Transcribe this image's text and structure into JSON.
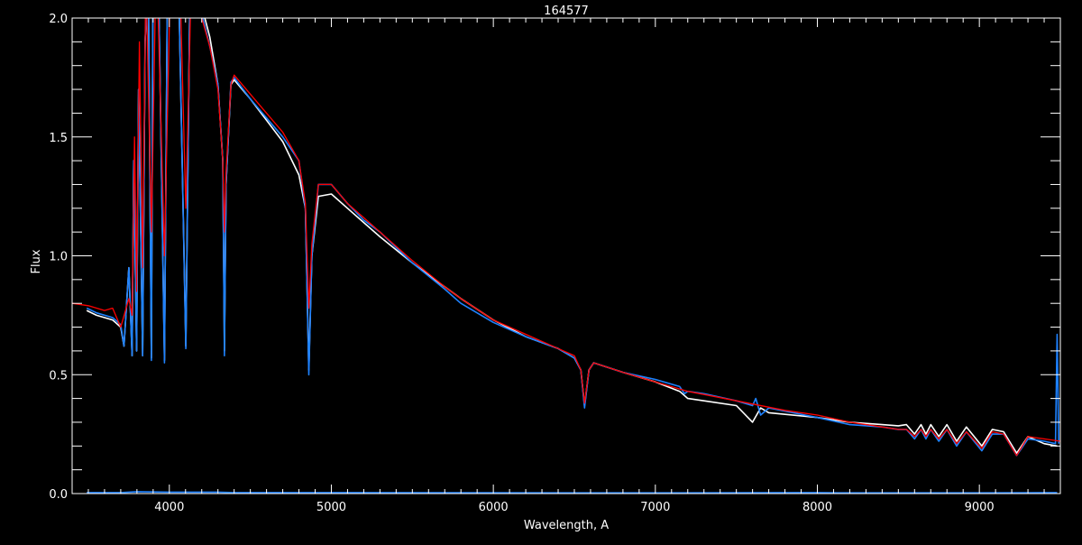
{
  "chart_data": {
    "type": "line",
    "title": "164577",
    "xlabel": "Wavelength, A",
    "ylabel": "Flux",
    "xlim": [
      3400,
      9500
    ],
    "ylim": [
      0.0,
      2.0
    ],
    "x_ticks": [
      4000,
      5000,
      6000,
      7000,
      8000,
      9000
    ],
    "x_tick_labels": [
      "4000",
      "5000",
      "6000",
      "7000",
      "8000",
      "9000"
    ],
    "x_minor_step": 100,
    "y_ticks": [
      0.0,
      0.5,
      1.0,
      1.5,
      2.0
    ],
    "y_tick_labels": [
      "0.0",
      "0.5",
      "1.0",
      "1.5",
      "2.0"
    ],
    "y_minor_step": 0.1,
    "grid": false,
    "background": "#000000",
    "axis_color": "#ffffff",
    "series": [
      {
        "color": "#ffffff",
        "x": [
          3490,
          3550,
          3650,
          3700,
          3720,
          3750,
          3770,
          3780,
          3798,
          3810,
          3835,
          3850,
          3870,
          3889,
          3900,
          3930,
          3970,
          3990,
          4050,
          4102,
          4130,
          4200,
          4250,
          4300,
          4330,
          4340,
          4350,
          4380,
          4400,
          4500,
          4600,
          4700,
          4800,
          4840,
          4861,
          4880,
          4920,
          5000,
          5100,
          5200,
          5300,
          5500,
          5700,
          5800,
          6000,
          6200,
          6400,
          6500,
          6540,
          6563,
          6590,
          6620,
          6800,
          7000,
          7150,
          7200,
          7300,
          7500,
          7600,
          7650,
          7700,
          8000,
          8200,
          8400,
          8500,
          8550,
          8600,
          8640,
          8670,
          8700,
          8750,
          8800,
          8860,
          8920,
          9015,
          9080,
          9150,
          9230,
          9300,
          9400,
          9480
        ],
        "y": [
          0.77,
          0.75,
          0.73,
          0.7,
          0.62,
          0.95,
          0.58,
          1.4,
          0.6,
          1.7,
          0.58,
          1.9,
          2.2,
          0.57,
          2.3,
          2.3,
          0.56,
          2.3,
          2.4,
          0.62,
          2.3,
          2.05,
          1.92,
          1.72,
          1.4,
          0.6,
          1.3,
          1.72,
          1.74,
          1.66,
          1.57,
          1.48,
          1.34,
          1.2,
          0.52,
          1.0,
          1.25,
          1.26,
          1.2,
          1.14,
          1.08,
          0.97,
          0.87,
          0.82,
          0.73,
          0.66,
          0.61,
          0.57,
          0.52,
          0.37,
          0.52,
          0.55,
          0.51,
          0.47,
          0.43,
          0.4,
          0.39,
          0.37,
          0.3,
          0.36,
          0.34,
          0.32,
          0.3,
          0.29,
          0.285,
          0.29,
          0.25,
          0.29,
          0.25,
          0.29,
          0.24,
          0.29,
          0.22,
          0.28,
          0.2,
          0.27,
          0.26,
          0.17,
          0.24,
          0.21,
          0.2
        ]
      },
      {
        "color": "#1e82ff",
        "x": [
          3490,
          3550,
          3650,
          3700,
          3720,
          3750,
          3770,
          3780,
          3798,
          3810,
          3835,
          3850,
          3870,
          3889,
          3900,
          3930,
          3970,
          3990,
          4050,
          4102,
          4130,
          4200,
          4250,
          4300,
          4330,
          4340,
          4350,
          4380,
          4400,
          4500,
          4600,
          4700,
          4800,
          4840,
          4861,
          4880,
          4920,
          5000,
          5100,
          5200,
          5300,
          5500,
          5700,
          5800,
          6000,
          6200,
          6400,
          6500,
          6540,
          6563,
          6590,
          6620,
          6800,
          7000,
          7150,
          7180,
          7200,
          7300,
          7500,
          7600,
          7620,
          7650,
          7700,
          8000,
          8200,
          8400,
          8500,
          8550,
          8600,
          8640,
          8670,
          8700,
          8750,
          8800,
          8860,
          8920,
          9015,
          9080,
          9150,
          9230,
          9300,
          9400,
          9470,
          9480,
          9490
        ],
        "y": [
          0.78,
          0.76,
          0.74,
          0.71,
          0.62,
          0.95,
          0.58,
          1.4,
          0.6,
          1.7,
          0.58,
          1.9,
          2.2,
          0.56,
          2.3,
          2.3,
          0.55,
          2.3,
          2.4,
          0.61,
          2.3,
          2.02,
          1.88,
          1.72,
          1.4,
          0.58,
          1.3,
          1.73,
          1.75,
          1.66,
          1.58,
          1.5,
          1.4,
          1.2,
          0.5,
          1.0,
          1.3,
          1.3,
          1.22,
          1.15,
          1.1,
          0.97,
          0.86,
          0.8,
          0.72,
          0.66,
          0.61,
          0.57,
          0.52,
          0.36,
          0.52,
          0.55,
          0.51,
          0.48,
          0.45,
          0.42,
          0.43,
          0.42,
          0.39,
          0.37,
          0.4,
          0.33,
          0.36,
          0.32,
          0.29,
          0.28,
          0.27,
          0.27,
          0.23,
          0.27,
          0.23,
          0.27,
          0.22,
          0.27,
          0.2,
          0.26,
          0.18,
          0.25,
          0.25,
          0.16,
          0.23,
          0.22,
          0.21,
          0.67,
          0.21
        ]
      },
      {
        "color": "#ff0000",
        "x": [
          3400,
          3500,
          3600,
          3650,
          3700,
          3750,
          3770,
          3785,
          3798,
          3815,
          3835,
          3855,
          3889,
          3920,
          3970,
          4010,
          4060,
          4102,
          4140,
          4200,
          4250,
          4300,
          4330,
          4340,
          4350,
          4380,
          4400,
          4500,
          4600,
          4700,
          4800,
          4840,
          4861,
          4880,
          4920,
          5000,
          5100,
          5200,
          5300,
          5500,
          5700,
          5800,
          6000,
          6200,
          6400,
          6500,
          6540,
          6563,
          6590,
          6620,
          6800,
          7000,
          7200,
          7500,
          7800,
          8000,
          8200,
          8400,
          8500,
          8550,
          8600,
          8640,
          8670,
          8700,
          8750,
          8800,
          8860,
          8920,
          9015,
          9080,
          9150,
          9230,
          9300,
          9400,
          9500
        ],
        "y": [
          0.8,
          0.79,
          0.77,
          0.78,
          0.7,
          0.82,
          0.75,
          1.5,
          0.85,
          1.9,
          0.95,
          2.2,
          1.1,
          2.3,
          1.0,
          2.3,
          2.3,
          1.2,
          2.3,
          2.0,
          1.88,
          1.7,
          1.4,
          1.1,
          1.35,
          1.72,
          1.76,
          1.68,
          1.6,
          1.52,
          1.4,
          1.22,
          0.78,
          1.05,
          1.3,
          1.3,
          1.22,
          1.16,
          1.1,
          0.98,
          0.87,
          0.82,
          0.73,
          0.67,
          0.61,
          0.58,
          0.52,
          0.38,
          0.52,
          0.55,
          0.51,
          0.47,
          0.43,
          0.39,
          0.35,
          0.33,
          0.3,
          0.28,
          0.27,
          0.27,
          0.24,
          0.27,
          0.24,
          0.27,
          0.23,
          0.27,
          0.21,
          0.26,
          0.19,
          0.26,
          0.25,
          0.16,
          0.24,
          0.23,
          0.22
        ]
      },
      {
        "color": "#1e82ff",
        "x": [
          3490,
          3700,
          3800,
          4000,
          4300,
          4400,
          5000,
          7000,
          8000,
          8130,
          9000,
          9480
        ],
        "y": [
          0.004,
          0.004,
          0.008,
          0.006,
          0.006,
          0.004,
          0.004,
          0.003,
          0.004,
          0.003,
          0.003,
          0.004
        ]
      }
    ]
  }
}
